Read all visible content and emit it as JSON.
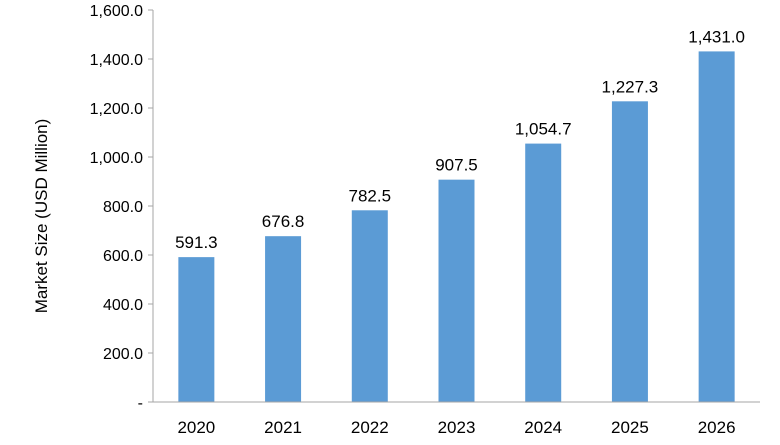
{
  "chart_data": {
    "type": "bar",
    "title": "",
    "xlabel": "",
    "ylabel": "Market Size (USD Million)",
    "ylim": [
      0,
      1600
    ],
    "yticks": [
      0,
      200,
      400,
      600,
      800,
      1000,
      1200,
      1400,
      1600
    ],
    "ytick_labels": [
      "-",
      "200.0",
      "400.0",
      "600.0",
      "800.0",
      "1,000.0",
      "1,200.0",
      "1,400.0",
      "1,600.0"
    ],
    "categories": [
      "2020",
      "2021",
      "2022",
      "2023",
      "2024",
      "2025",
      "2026"
    ],
    "values": [
      591.3,
      676.8,
      782.5,
      907.5,
      1054.7,
      1227.3,
      1431.0
    ],
    "value_labels": [
      "591.3",
      "676.8",
      "782.5",
      "907.5",
      "1,054.7",
      "1,227.3",
      "1,431.0"
    ],
    "bar_color": "#5b9bd5",
    "axis_color": "#a6a6a6",
    "grid": false,
    "legend": "none"
  }
}
